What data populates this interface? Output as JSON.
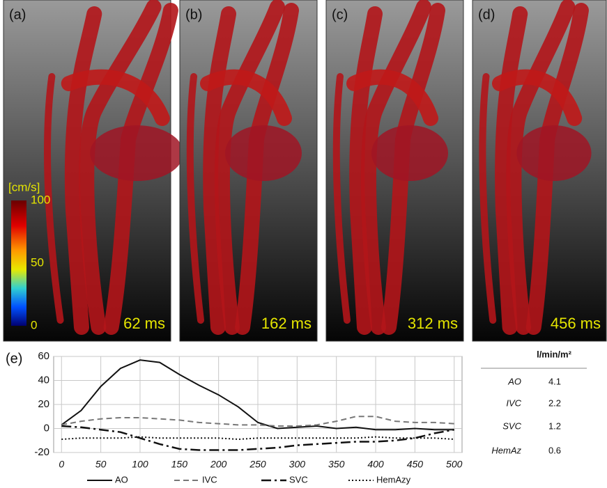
{
  "panels": [
    {
      "label": "(a)",
      "time": "62 ms"
    },
    {
      "label": "(b)",
      "time": "162 ms"
    },
    {
      "label": "(c)",
      "time": "312 ms"
    },
    {
      "label": "(d)",
      "time": "456 ms"
    }
  ],
  "colorbar": {
    "label": "[cm/s]",
    "ticks": [
      100,
      50,
      0
    ]
  },
  "chart_data": {
    "type": "line",
    "panel_label": "(e)",
    "x": [
      0,
      25,
      50,
      75,
      100,
      125,
      150,
      175,
      200,
      225,
      250,
      275,
      300,
      325,
      350,
      375,
      400,
      425,
      450,
      475,
      500
    ],
    "series": [
      {
        "name": "AO",
        "color": "#111111",
        "dash": "solid",
        "values": [
          3,
          15,
          35,
          50,
          57,
          55,
          45,
          36,
          28,
          18,
          5,
          0,
          1,
          2,
          0,
          1,
          -1,
          -1,
          0,
          -1,
          -1
        ]
      },
      {
        "name": "IVC",
        "color": "#777777",
        "dash": "dashed",
        "values": [
          3,
          6,
          8,
          9,
          9,
          8,
          7,
          5,
          4,
          3,
          3,
          2,
          2,
          3,
          6,
          10,
          10,
          6,
          5,
          5,
          4
        ]
      },
      {
        "name": "SVC",
        "color": "#111111",
        "dash": "dashdot",
        "values": [
          2,
          1,
          -1,
          -3,
          -8,
          -13,
          -17,
          -18,
          -18,
          -18,
          -17,
          -16,
          -14,
          -13,
          -12,
          -11,
          -11,
          -10,
          -8,
          -4,
          -1
        ]
      },
      {
        "name": "HemAzy",
        "color": "#111111",
        "dash": "dotted",
        "values": [
          -9,
          -8,
          -8,
          -8,
          -7,
          -8,
          -8,
          -8,
          -8,
          -9,
          -8,
          -8,
          -8,
          -8,
          -8,
          -8,
          -7,
          -8,
          -8,
          -8,
          -9
        ]
      }
    ],
    "xlim": [
      -10,
      510
    ],
    "xticks": [
      0,
      50,
      100,
      150,
      200,
      250,
      300,
      350,
      400,
      450,
      500
    ],
    "ylim": [
      -20,
      60
    ],
    "yticks": [
      -20,
      0,
      20,
      40,
      60
    ],
    "grid": true,
    "legend": "bottom"
  },
  "table": {
    "header": "l/min/m²",
    "rows": [
      [
        "AO",
        "4.1"
      ],
      [
        "IVC",
        "2.2"
      ],
      [
        "SVC",
        "1.2"
      ],
      [
        "HemAz",
        "0.6"
      ]
    ]
  }
}
